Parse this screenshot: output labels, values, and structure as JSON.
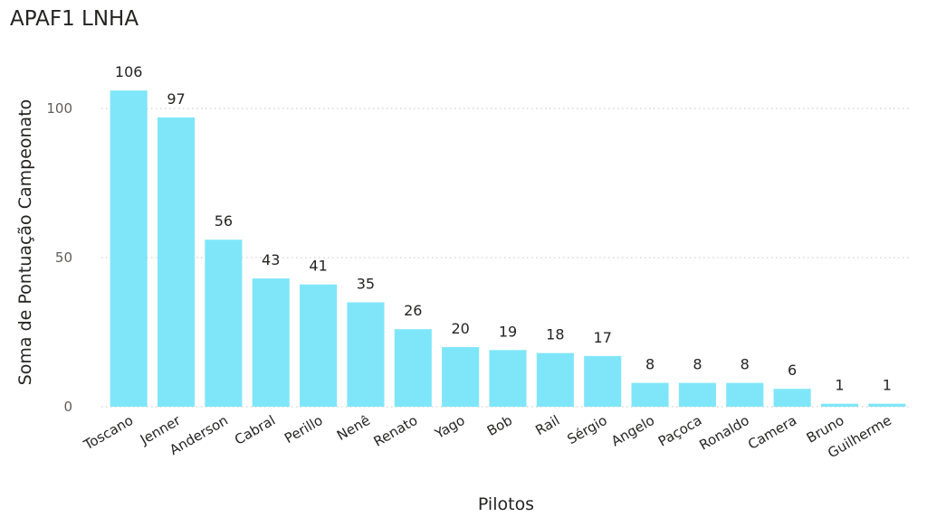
{
  "chart_data": {
    "type": "bar",
    "title": "APAF1 LNHA",
    "xlabel": "Pilotos",
    "ylabel": "Soma de Pontuação Campeonato",
    "categories": [
      "Toscano",
      "Jenner",
      "Anderson",
      "Cabral",
      "Perillo",
      "Nenê",
      "Renato",
      "Yago",
      "Bob",
      "Rail",
      "Sérgio",
      "Angelo",
      "Paçoca",
      "Ronaldo",
      "Camera",
      "Bruno",
      "Guilherme"
    ],
    "values": [
      106,
      97,
      56,
      43,
      41,
      35,
      26,
      20,
      19,
      18,
      17,
      8,
      8,
      8,
      6,
      1,
      1
    ],
    "ylim": [
      0,
      100
    ],
    "yticks": [
      0,
      50,
      100
    ],
    "grid": true,
    "bar_color": "#7fe6f9"
  }
}
